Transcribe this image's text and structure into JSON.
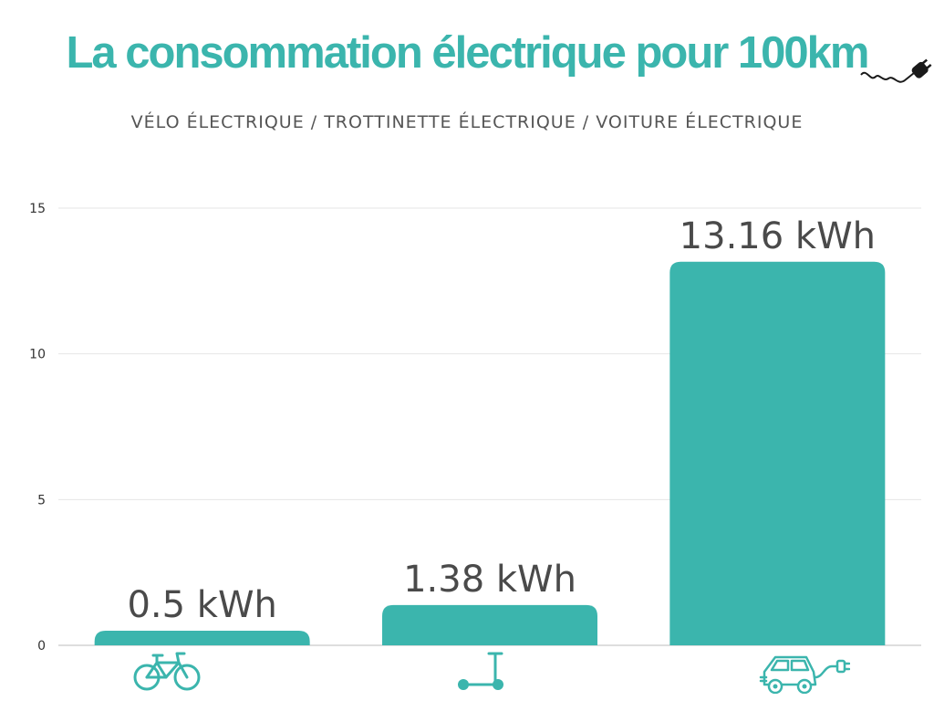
{
  "title": "La consommation électrique pour 100km",
  "subtitle": "VÉLO ÉLECTRIQUE / TROTTINETTE ÉLECTRIQUE / VOITURE ÉLECTRIQUE",
  "colors": {
    "title": "#3bb5ad",
    "bar": "#3bb5ad",
    "label": "#4a4a4a",
    "tick": "#333333",
    "grid": "#e6e6e6"
  },
  "icons": [
    "plug-icon",
    "bicycle-icon",
    "scooter-icon",
    "electric-car-icon"
  ],
  "chart_data": {
    "type": "bar",
    "title": "La consommation électrique pour 100km",
    "subtitle": "VÉLO ÉLECTRIQUE / TROTTINETTE ÉLECTRIQUE / VOITURE ÉLECTRIQUE",
    "categories": [
      "vélo électrique",
      "trottinette électrique",
      "voiture électrique"
    ],
    "values": [
      0.5,
      1.38,
      13.16
    ],
    "data_labels": [
      "0.5 kWh",
      "1.38 kWh",
      "13.16 kWh"
    ],
    "unit": "kWh",
    "xlabel": "",
    "ylabel": "",
    "ylim": [
      0,
      15
    ],
    "yticks": [
      0,
      5,
      10,
      15
    ],
    "grid": true,
    "legend": "none"
  }
}
